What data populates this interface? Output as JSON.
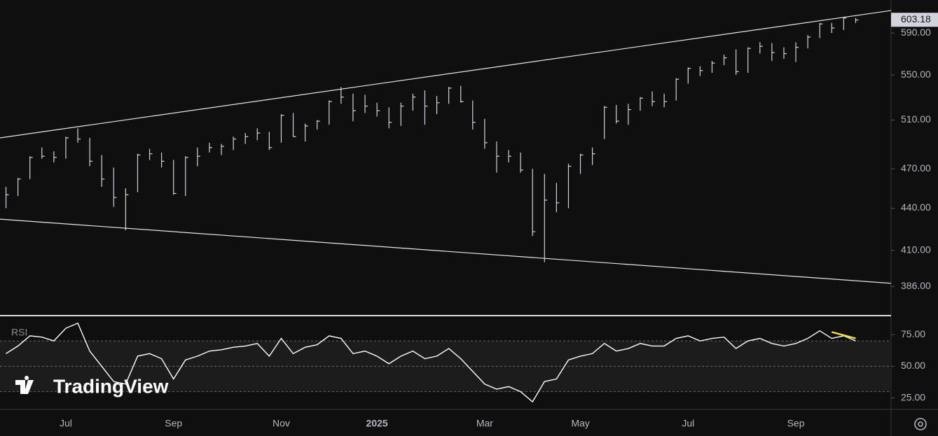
{
  "chart_data": {
    "type": "ohlc",
    "log_scale": true,
    "color": "#d1d4dc",
    "categories": [
      null,
      null,
      null,
      null,
      null,
      "Jul",
      null,
      null,
      null,
      null,
      null,
      null,
      null,
      null,
      "Sep",
      null,
      null,
      null,
      null,
      null,
      null,
      null,
      null,
      "Nov",
      null,
      null,
      null,
      null,
      null,
      null,
      null,
      "2025",
      null,
      null,
      null,
      null,
      null,
      null,
      null,
      null,
      "Mar",
      null,
      null,
      null,
      null,
      null,
      null,
      null,
      "May",
      null,
      null,
      null,
      null,
      null,
      null,
      null,
      null,
      "Jul",
      null,
      null,
      null,
      null,
      null,
      null,
      null,
      null,
      "Sep",
      null,
      null,
      null,
      null,
      null
    ],
    "high": [
      456,
      463,
      480,
      487,
      484,
      496,
      503,
      495,
      481,
      471,
      455,
      482,
      486,
      483,
      477,
      480,
      487,
      491,
      490,
      496,
      499,
      503,
      500,
      515,
      516,
      507,
      510,
      527,
      539,
      533,
      532,
      525,
      521,
      525,
      533,
      536,
      531,
      539,
      540,
      527,
      511,
      492,
      485,
      483,
      470,
      466,
      459,
      474,
      482,
      487,
      522,
      523,
      524,
      530,
      535,
      533,
      547,
      557,
      558,
      563,
      569,
      574,
      576,
      581,
      580,
      576,
      581,
      588,
      600,
      600,
      606,
      605
    ],
    "low": [
      440,
      449,
      462,
      478,
      475,
      478,
      491,
      472,
      456,
      441,
      424,
      452,
      477,
      471,
      450,
      449,
      472,
      483,
      481,
      485,
      490,
      493,
      485,
      491,
      496,
      492,
      502,
      506,
      524,
      509,
      516,
      513,
      503,
      505,
      518,
      506,
      515,
      524,
      525,
      502,
      486,
      467,
      475,
      467,
      420,
      402,
      437,
      440,
      466,
      473,
      494,
      507,
      506,
      518,
      522,
      521,
      527,
      542,
      549,
      552,
      559,
      550,
      552,
      570,
      563,
      565,
      562,
      575,
      585,
      590,
      593,
      600
    ],
    "close": [
      450,
      462,
      479,
      480,
      479,
      495,
      494,
      476,
      462,
      448,
      450,
      481,
      482,
      476,
      451,
      479,
      480,
      487,
      488,
      494,
      496,
      499,
      487,
      514,
      496,
      505,
      509,
      526,
      530,
      518,
      522,
      518,
      508,
      522,
      530,
      522,
      525,
      538,
      526,
      508,
      491,
      480,
      480,
      469,
      423,
      446,
      444,
      472,
      481,
      482,
      521,
      509,
      519,
      529,
      526,
      526,
      546,
      556,
      554,
      561,
      566,
      553,
      575,
      577,
      571,
      570,
      576,
      586,
      599,
      595,
      605,
      603
    ],
    "ylim": [
      368,
      623.5
    ],
    "yticks": [
      {
        "value": 386,
        "label": "386.00"
      },
      {
        "value": 410,
        "label": "410.00"
      },
      {
        "value": 440,
        "label": "440.00"
      },
      {
        "value": 470,
        "label": "470.00"
      },
      {
        "value": 510,
        "label": "510.00"
      },
      {
        "value": 550,
        "label": "550.00"
      },
      {
        "value": 590,
        "label": "590.00"
      }
    ],
    "last_price": 603.18,
    "trend_lines": [
      {
        "color": "#e6e6e6",
        "values": [
          495,
          612.6
        ]
      },
      {
        "color": "#e6e6e6",
        "values": [
          432,
          388
        ]
      }
    ],
    "watermark": "TradingView",
    "indicator": {
      "type": "line",
      "title": "RSI",
      "color": "#ffffff",
      "values": [
        60,
        66,
        74,
        73,
        70,
        80,
        84,
        62,
        50,
        38,
        36,
        58,
        60,
        56,
        40,
        55,
        58,
        62,
        63,
        65,
        66,
        68,
        58,
        72,
        60,
        65,
        67,
        74,
        72,
        60,
        62,
        58,
        52,
        58,
        62,
        56,
        58,
        64,
        56,
        46,
        36,
        32,
        34,
        30,
        22,
        38,
        40,
        55,
        58,
        60,
        68,
        62,
        64,
        68,
        66,
        66,
        72,
        74,
        70,
        72,
        73,
        64,
        70,
        72,
        68,
        66,
        68,
        72,
        78,
        72,
        74,
        70
      ],
      "ylim": [
        16,
        89.4
      ],
      "yticks": [
        {
          "value": 25,
          "label": "25.00"
        },
        {
          "value": 50,
          "label": "50.00"
        },
        {
          "value": 75,
          "label": "75.00"
        }
      ],
      "levels": [
        30,
        50,
        70
      ],
      "divergence": {
        "color": "#f5d742",
        "values": [
          77,
          72
        ]
      }
    }
  }
}
